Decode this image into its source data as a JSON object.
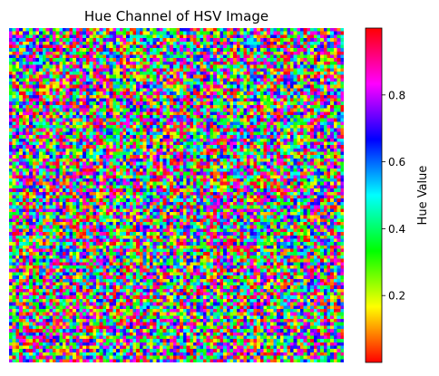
{
  "chart_data": {
    "type": "heatmap",
    "title": "Hue Channel of HSV Image",
    "grid": {
      "rows": 100,
      "cols": 100,
      "random_seed": 42,
      "value_range": [
        0,
        1
      ]
    },
    "axes_visible": false,
    "colormap": "hsv",
    "colorbar": {
      "label": "Hue Value",
      "range": [
        0,
        1
      ],
      "ticks": [
        0.2,
        0.4,
        0.6,
        0.8
      ],
      "tick_labels": [
        "0.2",
        "0.4",
        "0.6",
        "0.8"
      ],
      "placement": "right"
    }
  }
}
